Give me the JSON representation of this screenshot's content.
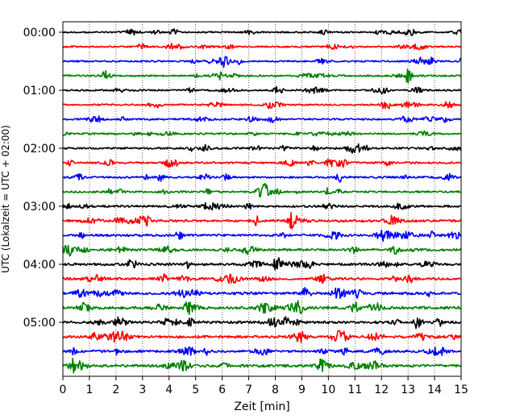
{
  "chart_data": {
    "type": "line",
    "title": "",
    "xlabel": "Zeit  [min]",
    "ylabel": "UTC (Lokalzeit = UTC + 02:00)",
    "xlim": [
      0,
      15
    ],
    "x_ticks": [
      0,
      1,
      2,
      3,
      4,
      5,
      6,
      7,
      8,
      9,
      10,
      11,
      12,
      13,
      14,
      15
    ],
    "x_tick_labels": [
      "0",
      "1",
      "2",
      "3",
      "4",
      "5",
      "6",
      "7",
      "8",
      "9",
      "10",
      "11",
      "12",
      "13",
      "14",
      "15"
    ],
    "y_tick_labels": [
      "00:00",
      "01:00",
      "02:00",
      "03:00",
      "04:00",
      "05:00"
    ],
    "y_tick_rows": [
      0,
      4,
      8,
      12,
      16,
      20
    ],
    "grid": "vertical dotted",
    "trace_interval_minutes": 15,
    "trace_count": 24,
    "color_cycle": [
      "#000000",
      "#ff0000",
      "#0000ff",
      "#008000"
    ],
    "traces": [
      {
        "start": "00:00",
        "amplitude": 0.9
      },
      {
        "start": "00:15",
        "amplitude": 0.9
      },
      {
        "start": "00:30",
        "amplitude": 0.9
      },
      {
        "start": "00:45",
        "amplitude": 1.0
      },
      {
        "start": "01:00",
        "amplitude": 0.9
      },
      {
        "start": "01:15",
        "amplitude": 0.9
      },
      {
        "start": "01:30",
        "amplitude": 1.0
      },
      {
        "start": "01:45",
        "amplitude": 1.0
      },
      {
        "start": "02:00",
        "amplitude": 1.1
      },
      {
        "start": "02:15",
        "amplitude": 1.1
      },
      {
        "start": "02:30",
        "amplitude": 1.1
      },
      {
        "start": "02:45",
        "amplitude": 1.1
      },
      {
        "start": "03:00",
        "amplitude": 1.2
      },
      {
        "start": "03:15",
        "amplitude": 1.4
      },
      {
        "start": "03:30",
        "amplitude": 1.3
      },
      {
        "start": "03:45",
        "amplitude": 1.3
      },
      {
        "start": "04:00",
        "amplitude": 1.4
      },
      {
        "start": "04:15",
        "amplitude": 1.4
      },
      {
        "start": "04:30",
        "amplitude": 1.5
      },
      {
        "start": "04:45",
        "amplitude": 1.6
      },
      {
        "start": "05:00",
        "amplitude": 1.5
      },
      {
        "start": "05:15",
        "amplitude": 1.5
      },
      {
        "start": "05:30",
        "amplitude": 1.4
      },
      {
        "start": "05:45",
        "amplitude": 1.5
      }
    ],
    "events": [
      {
        "trace": 3,
        "minute": 13.0,
        "amplitude": 14
      },
      {
        "trace": 2,
        "minute": 15.0,
        "amplitude": 5
      },
      {
        "trace": 13,
        "minute": 7.3,
        "amplitude": 6
      },
      {
        "trace": 20,
        "minute": 13.3,
        "amplitude": 6
      },
      {
        "trace": 10,
        "minute": 2.3,
        "amplitude": 4
      },
      {
        "trace": 11,
        "minute": 8.1,
        "amplitude": 4
      },
      {
        "trace": 22,
        "minute": 5.4,
        "amplitude": 4
      }
    ]
  }
}
